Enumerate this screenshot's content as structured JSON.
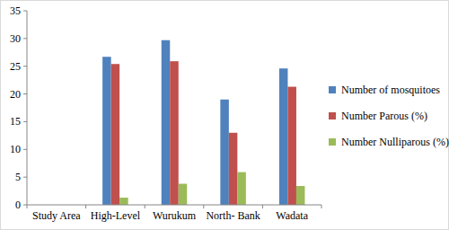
{
  "chart_data": {
    "type": "bar",
    "categories": [
      "Study Area",
      "High-Level",
      "Wurukum",
      "North- Bank",
      "Wadata"
    ],
    "series": [
      {
        "name": "Number of mosquitoes",
        "color": "#4f81bd",
        "values": [
          null,
          26.7,
          29.7,
          19,
          24.6
        ]
      },
      {
        "name": "Number Parous (%)",
        "color": "#c0504d",
        "values": [
          null,
          25.4,
          25.9,
          13,
          21.3
        ]
      },
      {
        "name": "Number Nulliparous (%)",
        "color": "#9bbb59",
        "values": [
          null,
          1.3,
          3.8,
          5.9,
          3.4
        ]
      }
    ],
    "ylim": [
      0,
      35
    ],
    "yticks": [
      0,
      5,
      10,
      15,
      20,
      25,
      30,
      35
    ],
    "grid": false,
    "legend": "right"
  }
}
